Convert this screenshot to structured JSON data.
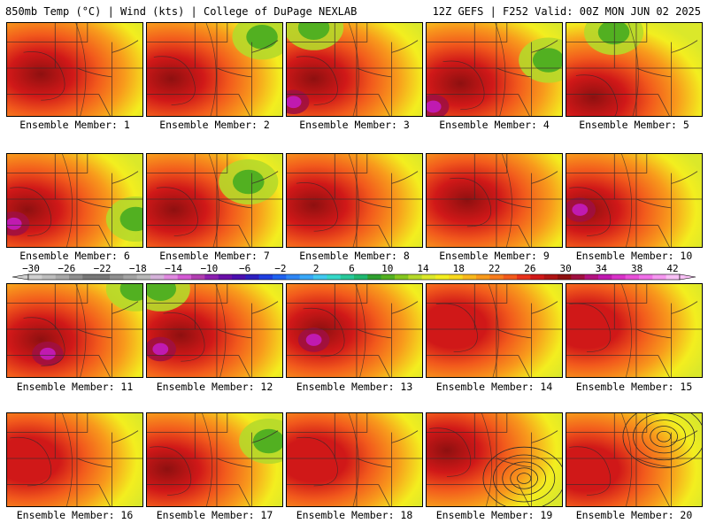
{
  "header": {
    "left": "850mb Temp (°C) | Wind (kts) | College of DuPage NEXLAB",
    "right": "12Z GEFS | F252 Valid: 00Z MON JUN 02 2025"
  },
  "colorbar": {
    "ticks": [
      "-30",
      "-26",
      "-22",
      "-18",
      "-14",
      "-10",
      "-6",
      "-2",
      "2",
      "6",
      "10",
      "14",
      "18",
      "22",
      "26",
      "30",
      "34",
      "38",
      "42"
    ],
    "colors": [
      "#cfcfcf",
      "#bdbdbd",
      "#a9a9a9",
      "#8f8f8f",
      "#777777",
      "#777777",
      "#8e8e8e",
      "#a3a3a3",
      "#b8b8b8",
      "#d4b2d9",
      "#e08ae0",
      "#d35ad3",
      "#b13fb1",
      "#8c1fb0",
      "#6a0fa8",
      "#4b0fb0",
      "#2e1fc0",
      "#1f3fe0",
      "#1f62f0",
      "#2f86f5",
      "#38a8f8",
      "#40c8f0",
      "#35d8c8",
      "#28c89a",
      "#1fb870",
      "#2fa02f",
      "#52b021",
      "#84c61f",
      "#b6d92a",
      "#dbe82a",
      "#f3ee1f",
      "#f8d81c",
      "#f8b81c",
      "#f89a1c",
      "#f77b1c",
      "#f25a1c",
      "#e8321c",
      "#d01818",
      "#b01414",
      "#8e1010",
      "#a01040",
      "#b31280",
      "#c01ab0",
      "#d832c8",
      "#e850d8",
      "#f070e8",
      "#f598f0",
      "#f8c0f5"
    ]
  },
  "panels": [
    {
      "label": "Ensemble Member: 1"
    },
    {
      "label": "Ensemble Member: 2"
    },
    {
      "label": "Ensemble Member: 3"
    },
    {
      "label": "Ensemble Member: 4"
    },
    {
      "label": "Ensemble Member: 5"
    },
    {
      "label": "Ensemble Member: 6"
    },
    {
      "label": "Ensemble Member: 7"
    },
    {
      "label": "Ensemble Member: 8"
    },
    {
      "label": "Ensemble Member: 9"
    },
    {
      "label": "Ensemble Member: 10"
    },
    {
      "label": "Ensemble Member: 11"
    },
    {
      "label": "Ensemble Member: 12"
    },
    {
      "label": "Ensemble Member: 13"
    },
    {
      "label": "Ensemble Member: 14"
    },
    {
      "label": "Ensemble Member: 15"
    },
    {
      "label": "Ensemble Member: 16"
    },
    {
      "label": "Ensemble Member: 17"
    },
    {
      "label": "Ensemble Member: 18"
    },
    {
      "label": "Ensemble Member: 19"
    },
    {
      "label": "Ensemble Member: 20"
    }
  ]
}
